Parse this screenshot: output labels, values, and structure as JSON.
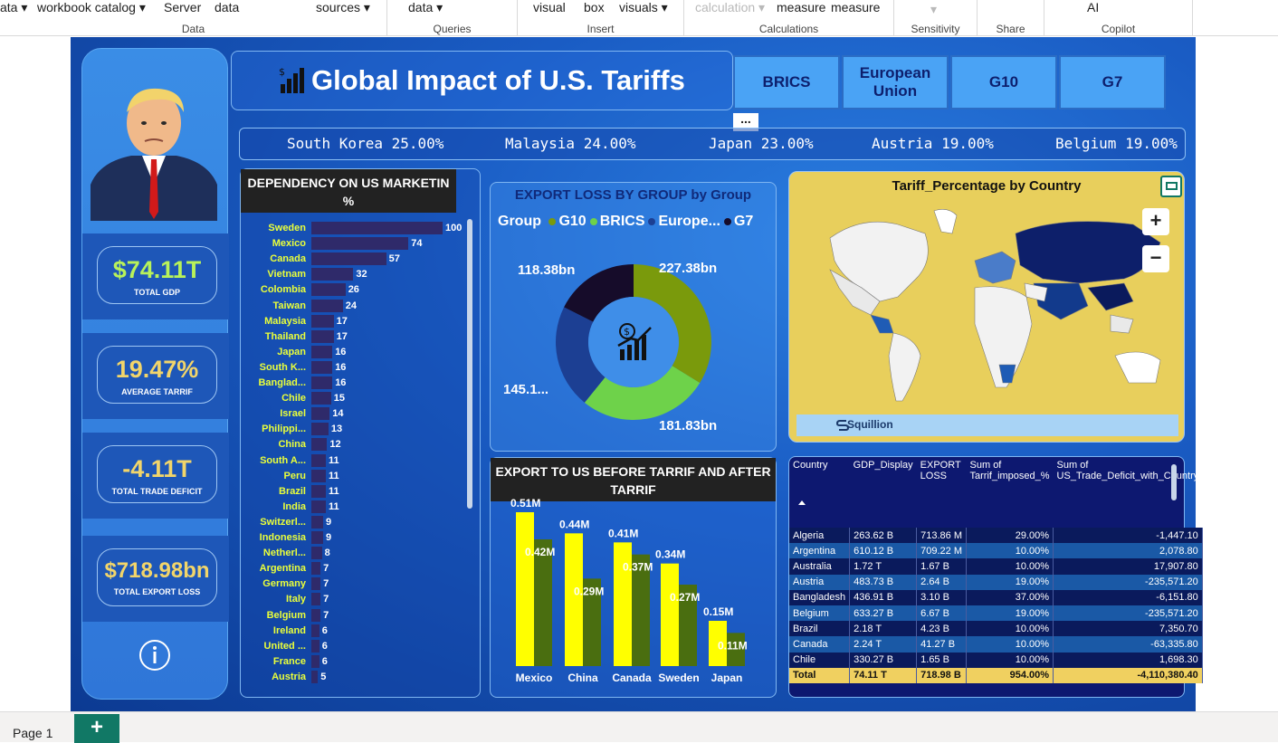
{
  "ribbon": {
    "groups": [
      {
        "label": "Data",
        "items": [
          "ata",
          "workbook catalog",
          "Server",
          "data"
        ]
      },
      {
        "label": "Queries",
        "items": [
          "sources",
          "data"
        ]
      },
      {
        "label": "Insert",
        "items": [
          "visual",
          "box",
          "visuals"
        ]
      },
      {
        "label": "Calculations",
        "items": [
          "calculation",
          "measure",
          "measure"
        ]
      },
      {
        "label": "Sensitivity",
        "items": []
      },
      {
        "label": "Share",
        "items": []
      },
      {
        "label": "Copilot",
        "items": [
          "AI"
        ]
      }
    ]
  },
  "report": {
    "title": "Global Impact of U.S. Tariffs",
    "more_options": "...",
    "slicers": [
      "BRICS",
      "European Union",
      "G10",
      "G7"
    ],
    "ticker": [
      "South Korea 25.00%",
      "Malaysia 24.00%",
      "Japan 23.00%",
      "Austria 19.00%",
      "Belgium 19.00%"
    ],
    "kpis": [
      {
        "value": "$74.11T",
        "label": "TOTAL GDP",
        "color": "#b8f25a"
      },
      {
        "value": "19.47%",
        "label": "AVERAGE TARRIF",
        "color": "#f2d56a"
      },
      {
        "value": "-4.11T",
        "label": "TOTAL TRADE DEFICIT",
        "color": "#f2d56a"
      },
      {
        "value": "$718.98bn",
        "label": "TOTAL EXPORT LOSS",
        "color": "#f2d56a"
      }
    ],
    "info_icon": "info-icon"
  },
  "dependency": {
    "title": "DEPENDENCY ON US MARKETIN %"
  },
  "donut": {
    "title": "EXPORT LOSS BY GROUP by Group",
    "legend_title": "Group",
    "center_icon": "money-growth-icon"
  },
  "bars": {
    "title": "EXPORT TO US BEFORE TARRIF AND AFTER TARRIF"
  },
  "map": {
    "title": "Tariff_Percentage by Country",
    "zoom_in": "+",
    "zoom_out": "−",
    "brand": "Squillion"
  },
  "table": {
    "headers": [
      "Country",
      "GDP_Display",
      "EXPORT LOSS",
      "Sum of Tarrif_imposed_%",
      "Sum of US_Trade_Deficit_with_Country"
    ],
    "rows": [
      [
        "Algeria",
        "263.62 B",
        "713.86 M",
        "29.00%",
        "-1,447.10"
      ],
      [
        "Argentina",
        "610.12 B",
        "709.22 M",
        "10.00%",
        "2,078.80"
      ],
      [
        "Australia",
        "1.72 T",
        "1.67 B",
        "10.00%",
        "17,907.80"
      ],
      [
        "Austria",
        "483.73 B",
        "2.64 B",
        "19.00%",
        "-235,571.20"
      ],
      [
        "Bangladesh",
        "436.91 B",
        "3.10 B",
        "37.00%",
        "-6,151.80"
      ],
      [
        "Belgium",
        "633.27 B",
        "6.67 B",
        "19.00%",
        "-235,571.20"
      ],
      [
        "Brazil",
        "2.18 T",
        "4.23 B",
        "10.00%",
        "7,350.70"
      ],
      [
        "Canada",
        "2.24 T",
        "41.27 B",
        "10.00%",
        "-63,335.80"
      ],
      [
        "Chile",
        "330.27 B",
        "1.65 B",
        "10.00%",
        "1,698.30"
      ]
    ],
    "total": [
      "Total",
      "74.11 T",
      "718.98 B",
      "954.00%",
      "-4,110,380.40"
    ]
  },
  "footer": {
    "page_tab": "Page 1",
    "add_label": "+"
  },
  "chart_data": [
    {
      "type": "bar",
      "title": "DEPENDENCY ON US MARKETIN %",
      "categories": [
        "Sweden",
        "Mexico",
        "Canada",
        "Vietnam",
        "Colombia",
        "Taiwan",
        "Malaysia",
        "Thailand",
        "Japan",
        "South K...",
        "Banglad...",
        "Chile",
        "Israel",
        "Philippi...",
        "China",
        "South A...",
        "Peru",
        "Brazil",
        "India",
        "Switzerl...",
        "Indonesia",
        "Netherl...",
        "Argentina",
        "Germany",
        "Italy",
        "Belgium",
        "Ireland",
        "United ...",
        "France",
        "Austria"
      ],
      "values": [
        100,
        74,
        57,
        32,
        26,
        24,
        17,
        17,
        16,
        16,
        16,
        15,
        14,
        13,
        12,
        11,
        11,
        11,
        11,
        9,
        9,
        8,
        7,
        7,
        7,
        7,
        6,
        6,
        6,
        5
      ],
      "orientation": "horizontal"
    },
    {
      "type": "pie",
      "title": "EXPORT LOSS BY GROUP by Group",
      "categories": [
        "G10",
        "BRICS",
        "Europe...",
        "G7"
      ],
      "values": [
        227.38,
        181.83,
        145.1,
        118.38
      ],
      "labels": [
        "227.38bn",
        "181.83bn",
        "145.1...",
        "118.38bn"
      ],
      "colors": [
        "#7a9a0c",
        "#6ed24a",
        "#1c3f93",
        "#160c2a"
      ],
      "legend": "top"
    },
    {
      "type": "bar",
      "title": "EXPORT TO US BEFORE TARRIF AND AFTER TARRIF",
      "categories": [
        "Mexico",
        "China",
        "Canada",
        "Sweden",
        "Japan"
      ],
      "series": [
        {
          "values": [
            0.51,
            0.44,
            0.41,
            0.34,
            0.15
          ],
          "labels": [
            "0.51M",
            "0.44M",
            "0.41M",
            "0.34M",
            "0.15M"
          ],
          "color": "#ffff00"
        },
        {
          "values": [
            0.42,
            0.29,
            0.37,
            0.27,
            0.11
          ],
          "labels": [
            "0.42M",
            "0.29M",
            "0.37M",
            "0.27M",
            "0.11M"
          ],
          "color": "#4a6e10"
        }
      ]
    }
  ]
}
